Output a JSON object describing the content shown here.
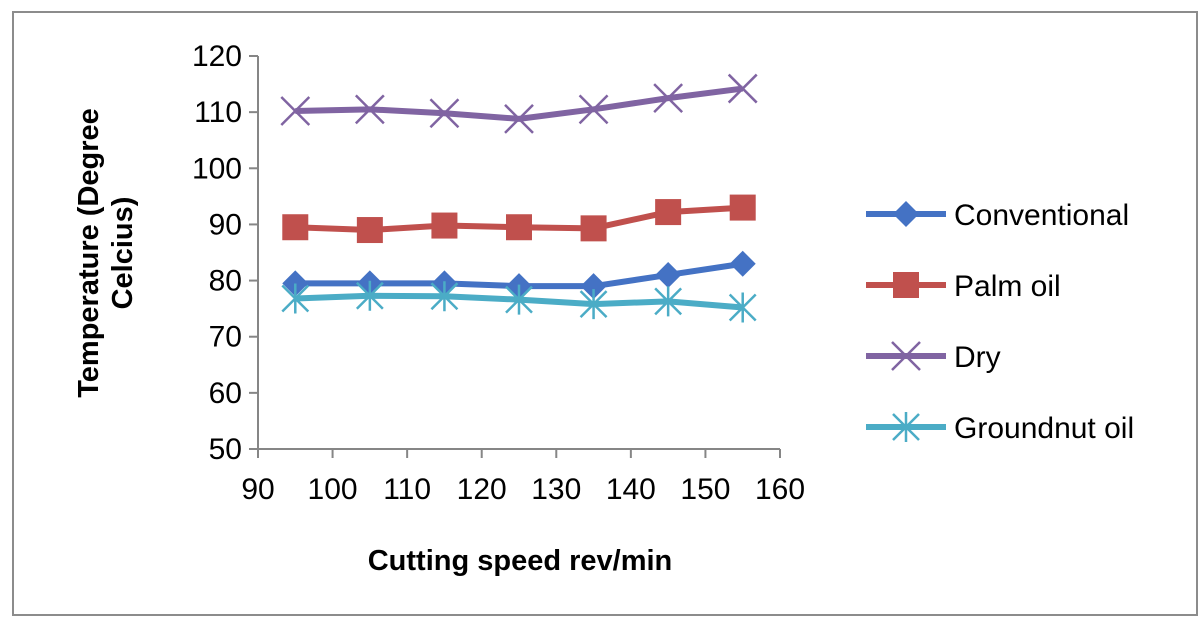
{
  "chart_data": {
    "type": "line",
    "title": "",
    "xlabel": "Cutting speed rev/min",
    "ylabel_lines": [
      "Temperature (Degree",
      "Celcius)"
    ],
    "xlim": [
      90,
      160
    ],
    "ylim": [
      50,
      120
    ],
    "x_ticks": [
      90,
      100,
      110,
      120,
      130,
      140,
      150,
      160
    ],
    "y_ticks": [
      50,
      60,
      70,
      80,
      90,
      100,
      110,
      120
    ],
    "grid": {
      "horizontal": false,
      "vertical": false
    },
    "legend_position": "right",
    "series": [
      {
        "name": "Conventional",
        "color": "#4472C4",
        "marker": "diamond",
        "x": [
          95,
          105,
          115,
          125,
          135,
          145,
          155
        ],
        "y": [
          79.5,
          79.5,
          79.5,
          79,
          79,
          81,
          83
        ]
      },
      {
        "name": "Palm oil",
        "color": "#C0504D",
        "marker": "square",
        "x": [
          95,
          105,
          115,
          125,
          135,
          145,
          155
        ],
        "y": [
          89.5,
          89,
          89.8,
          89.5,
          89.3,
          92.2,
          93
        ]
      },
      {
        "name": "Dry",
        "color": "#8064A2",
        "marker": "x",
        "x": [
          95,
          105,
          115,
          125,
          135,
          145,
          155
        ],
        "y": [
          110.2,
          110.5,
          109.8,
          108.8,
          110.5,
          112.5,
          114.2
        ]
      },
      {
        "name": "Groundnut oil",
        "color": "#4BACC6",
        "marker": "asterisk",
        "x": [
          95,
          105,
          115,
          125,
          135,
          145,
          155
        ],
        "y": [
          76.8,
          77.3,
          77.2,
          76.6,
          75.8,
          76.3,
          75.2
        ]
      }
    ]
  }
}
